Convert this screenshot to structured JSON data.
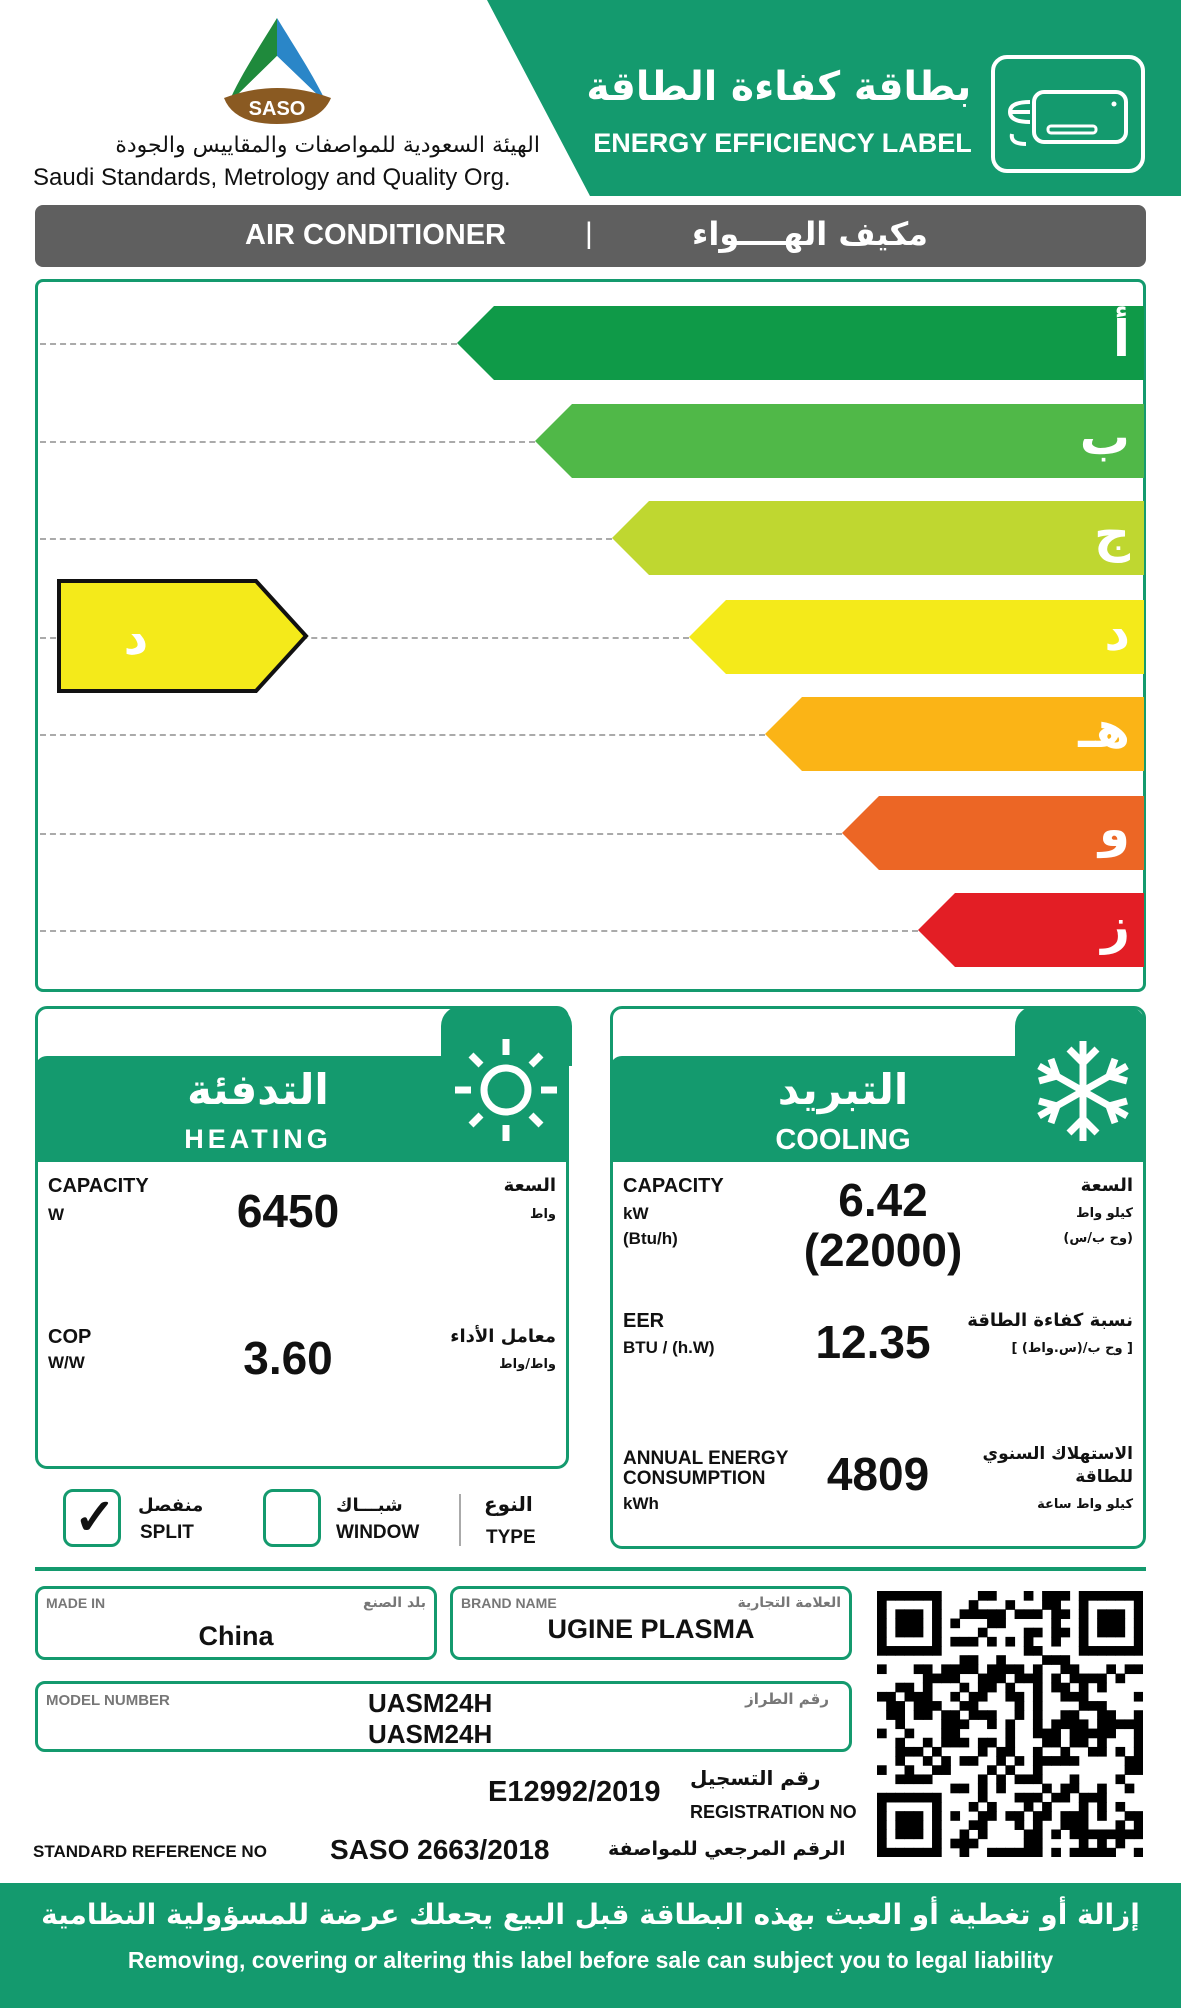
{
  "header": {
    "org_ar": "الهيئة السعودية للمواصفات والمقاييس والجودة",
    "org_en": "Saudi Standards, Metrology and Quality Org.",
    "logo_text": "SASO",
    "title_ar": "بطاقة كفاءة الطاقة",
    "title_en": "ENERGY EFFICIENCY LABEL",
    "icon": "air-conditioner-icon"
  },
  "product": {
    "en": "AIR CONDITIONER",
    "sep": "|",
    "ar": "مكيف الهــــواء"
  },
  "scale": {
    "classes": [
      {
        "label": "أ",
        "color": "#0f9a48"
      },
      {
        "label": "ب",
        "color": "#50b848"
      },
      {
        "label": "ج",
        "color": "#bfd730"
      },
      {
        "label": "د",
        "color": "#f4ea1a"
      },
      {
        "label": "هـ",
        "color": "#fbb416"
      },
      {
        "label": "و",
        "color": "#ec6625"
      },
      {
        "label": "ز",
        "color": "#e31e25"
      }
    ],
    "rating": "د",
    "rating_color": "#f4ea1a"
  },
  "heating": {
    "title_ar": "التدفئة",
    "title_en": "HEATING",
    "icon": "sun-icon",
    "capacity": {
      "en": "CAPACITY",
      "unit": "W",
      "ar": "السعة",
      "unit_ar": "واط",
      "value": "6450"
    },
    "cop": {
      "en": "COP",
      "unit": "W/W",
      "ar": "معامل الأداء",
      "unit_ar": "واط/واط",
      "value": "3.60"
    }
  },
  "cooling": {
    "title_ar": "التبريد",
    "title_en": "COOLING",
    "icon": "snowflake-icon",
    "capacity": {
      "en": "CAPACITY",
      "unit": "kW",
      "unit2": "(Btu/h)",
      "ar": "السعة",
      "unit_ar": "كيلو واط",
      "unit2_ar": "(وح ب/س)",
      "value": "6.42",
      "value2": "(22000)"
    },
    "eer": {
      "en": "EER",
      "unit": "BTU / (h.W)",
      "ar": "نسبة كفاءة الطاقة",
      "unit_ar": "[ وح ب/(س.واط) ]",
      "value": "12.35"
    },
    "annual": {
      "en1": "ANNUAL ENERGY",
      "en2": "CONSUMPTION",
      "unit": "kWh",
      "ar1": "الاستهلاك السنوي",
      "ar2": "للطاقة",
      "unit_ar": "كيلو واط ساعة",
      "value": "4809"
    }
  },
  "type": {
    "split_ar": "منفصل",
    "split_en": "SPLIT",
    "split_checked": true,
    "window_ar": "شبـــاك",
    "window_en": "WINDOW",
    "window_checked": false,
    "type_ar": "النوع",
    "type_en": "TYPE"
  },
  "details": {
    "made_in_label": "MADE IN",
    "made_in_label_ar": "بلد الصنع",
    "made_in": "China",
    "brand_label": "BRAND  NAME",
    "brand_label_ar": "العلامة التجارية",
    "brand": "UGINE PLASMA",
    "model_label": "MODEL NUMBER",
    "model_label_ar": "رقم الطراز",
    "model1": "UASM24H",
    "model2": "UASM24H",
    "reg_value": "E12992/2019",
    "reg_ar": "رقم التسجيل",
    "reg_en": "REGISTRATION NO",
    "std_en": "STANDARD REFERENCE NO",
    "std_value": "SASO 2663/2018",
    "std_ar": "الرقم المرجعي للمواصفة"
  },
  "footer": {
    "ar": "إزالة أو تغطية أو العبث بهذه البطاقة قبل البيع يجعلك عرضة للمسؤولية النظامية",
    "en": "Removing, covering or altering this label before sale can subject you to legal liability"
  },
  "colors": {
    "brand_green": "#149a6e",
    "grey": "#5f5f5f"
  }
}
